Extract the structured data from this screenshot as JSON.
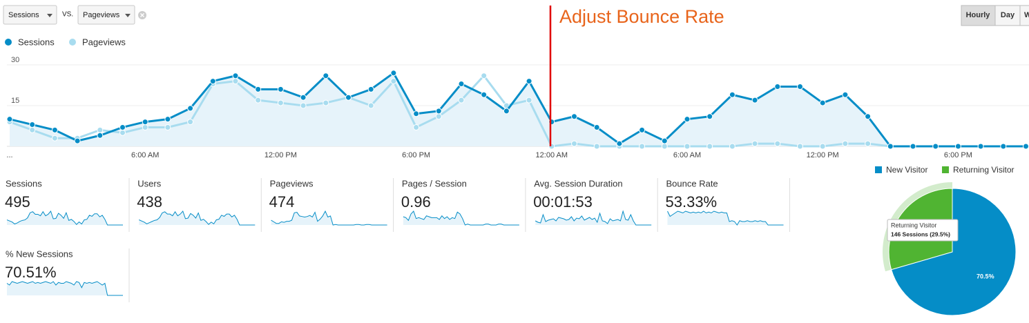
{
  "controls": {
    "metric_1": "Sessions",
    "vs": "VS.",
    "metric_2": "Pageviews",
    "granularity": [
      "Hourly",
      "Day",
      "W"
    ]
  },
  "annotation": "Adjust Bounce Rate",
  "chart_data": [
    {
      "type": "line",
      "categories": [
        "...",
        null,
        null,
        null,
        null,
        null,
        "6:00 AM",
        null,
        null,
        null,
        null,
        null,
        "12:00 PM",
        null,
        null,
        null,
        null,
        null,
        "6:00 PM",
        null,
        null,
        null,
        null,
        null,
        "12:00 AM",
        null,
        null,
        null,
        null,
        null,
        "6:00 AM",
        null,
        null,
        null,
        null,
        null,
        "12:00 PM",
        null,
        null,
        null,
        null,
        null,
        "6:00 PM",
        null,
        null,
        null
      ],
      "series": [
        {
          "name": "Sessions",
          "color": "#058dc7",
          "values": [
            10,
            8,
            6,
            2,
            4,
            7,
            9,
            10,
            14,
            24,
            26,
            21,
            21,
            18,
            26,
            18,
            21,
            27,
            12,
            13,
            23,
            19,
            13,
            24,
            9,
            11,
            7,
            1,
            6,
            2,
            10,
            11,
            19,
            17,
            22,
            22,
            16,
            19,
            11,
            0,
            0,
            0,
            0,
            0,
            0,
            0
          ]
        },
        {
          "name": "Pageviews",
          "color": "#a8dcef",
          "values": [
            9,
            6,
            3,
            3,
            6,
            5,
            7,
            7,
            9,
            23,
            24,
            17,
            16,
            15,
            16,
            18,
            15,
            24,
            7,
            11,
            17,
            26,
            15,
            17,
            0,
            1,
            0,
            0,
            0,
            0,
            0,
            0,
            0,
            1,
            1,
            0,
            0,
            1,
            1,
            0,
            0,
            0,
            0,
            0,
            0,
            0
          ]
        }
      ],
      "ylim": [
        0,
        30
      ],
      "yticks": [
        15,
        30
      ],
      "grid": true,
      "area_color": "#e6f3fa"
    },
    {
      "type": "pie",
      "categories": [
        "New Visitor",
        "Returning Visitor"
      ],
      "values": [
        70.5,
        29.5
      ],
      "value_labels": [
        "70.5%",
        null
      ],
      "colors": [
        "#058dc7",
        "#50b432"
      ],
      "tooltip": "146 Sessions (29.5%)"
    }
  ],
  "metrics": [
    {
      "label": "Sessions",
      "value": "495",
      "sparkline": [
        10,
        8,
        6,
        2,
        4,
        7,
        9,
        10,
        14,
        24,
        26,
        21,
        21,
        18,
        26,
        18,
        21,
        27,
        12,
        13,
        23,
        19,
        13,
        24,
        9,
        11,
        7,
        1,
        6,
        2,
        10,
        11,
        19,
        17,
        22,
        22,
        16,
        19,
        11,
        0,
        0,
        0,
        0,
        0,
        0,
        0
      ]
    },
    {
      "label": "Users",
      "value": "438",
      "sparkline": [
        9,
        7,
        5,
        2,
        4,
        6,
        8,
        9,
        13,
        21,
        23,
        19,
        19,
        16,
        23,
        16,
        19,
        24,
        11,
        12,
        20,
        17,
        12,
        21,
        8,
        10,
        6,
        1,
        5,
        2,
        9,
        10,
        17,
        15,
        19,
        19,
        14,
        17,
        10,
        0,
        0,
        0,
        0,
        0,
        0,
        0
      ]
    },
    {
      "label": "Pageviews",
      "value": "474",
      "sparkline": [
        9,
        6,
        3,
        3,
        6,
        5,
        7,
        7,
        9,
        23,
        24,
        17,
        16,
        15,
        16,
        18,
        15,
        24,
        7,
        11,
        17,
        26,
        15,
        17,
        0,
        1,
        0,
        0,
        0,
        0,
        0,
        0,
        0,
        1,
        1,
        0,
        0,
        1,
        1,
        0,
        0,
        0,
        0,
        0,
        0,
        0
      ]
    },
    {
      "label": "Pages / Session",
      "value": "0.96",
      "sparkline": [
        0.9,
        0.8,
        0.5,
        1.2,
        1.5,
        0.7,
        0.8,
        0.7,
        0.6,
        1,
        0.9,
        0.8,
        0.8,
        0.8,
        0.6,
        1,
        0.7,
        0.9,
        0.6,
        0.8,
        0.7,
        1.4,
        1.2,
        0.7,
        0,
        0.1,
        0,
        0,
        0,
        0,
        0,
        0,
        0.1,
        0.1,
        0,
        0,
        0,
        0.1,
        0.1,
        0,
        0,
        0,
        0,
        0,
        0,
        0
      ]
    },
    {
      "label": "Avg. Session Duration",
      "value": "00:01:53",
      "sparkline": [
        60,
        40,
        30,
        150,
        50,
        70,
        80,
        90,
        60,
        110,
        100,
        90,
        70,
        80,
        120,
        60,
        100,
        90,
        130,
        70,
        90,
        110,
        80,
        100,
        40,
        170,
        60,
        50,
        20,
        90,
        60,
        70,
        80,
        60,
        200,
        80,
        70,
        150,
        60,
        0,
        0,
        0,
        0,
        0,
        0,
        0
      ]
    },
    {
      "label": "Bounce Rate",
      "value": "53.33%",
      "sparkline": [
        80,
        50,
        60,
        70,
        80,
        75,
        70,
        80,
        75,
        70,
        75,
        70,
        75,
        70,
        80,
        70,
        75,
        70,
        80,
        75,
        70,
        75,
        70,
        70,
        20,
        25,
        20,
        0,
        25,
        20,
        20,
        25,
        20,
        20,
        25,
        20,
        25,
        20,
        20,
        0,
        0,
        0,
        0,
        0,
        0,
        0
      ]
    },
    {
      "label": "% New Sessions",
      "value": "70.51%",
      "sparkline": [
        70,
        60,
        80,
        75,
        70,
        75,
        80,
        75,
        70,
        75,
        80,
        70,
        75,
        70,
        75,
        80,
        75,
        70,
        80,
        60,
        75,
        70,
        70,
        80,
        75,
        70,
        60,
        80,
        75,
        45,
        75,
        70,
        75,
        70,
        75,
        80,
        70,
        60,
        70,
        0,
        0,
        0,
        0,
        0,
        0,
        0
      ]
    }
  ]
}
